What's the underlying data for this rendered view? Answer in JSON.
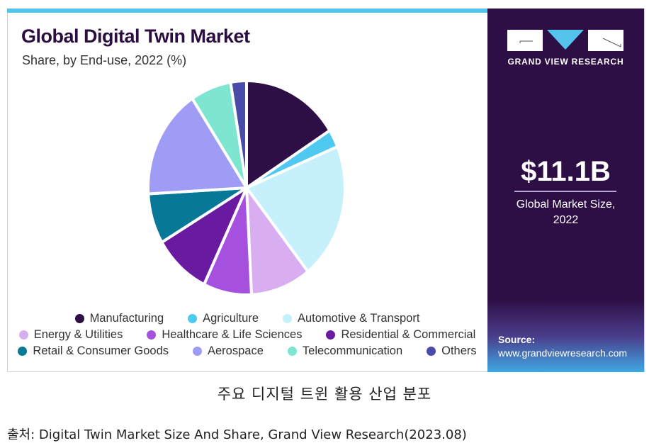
{
  "chart_data": {
    "type": "pie",
    "title": "Global Digital Twin Market",
    "subtitle": "Share, by End-use, 2022 (%)",
    "legend_position": "bottom",
    "categories": [
      "Manufacturing",
      "Agriculture",
      "Automotive & Transport",
      "Energy & Utilities",
      "Healthcare & Life Sciences",
      "Residential & Commercial",
      "Retail & Consumer Goods",
      "Aerospace",
      "Telecommunication",
      "Others"
    ],
    "values": [
      16.0,
      2.7,
      20.6,
      9.9,
      7.9,
      9.4,
      7.6,
      16.6,
      6.7,
      2.6
    ],
    "colors": [
      "#2e0f45",
      "#4fc9f0",
      "#c6f0fb",
      "#d9aef0",
      "#a650e0",
      "#6a1aa0",
      "#087898",
      "#9e9cf5",
      "#7ee6d0",
      "#4a4aa8"
    ]
  },
  "panel": {
    "brand": "GRAND VIEW RESEARCH",
    "value": "$11.1B",
    "value_label_1": "Global Market Size,",
    "value_label_2": "2022",
    "source_label": "Source:",
    "source_url": "www.grandviewresearch.com"
  },
  "caption": "주요 디지털 트윈 활용 산업 분포",
  "source_line": "출처: Digital Twin Market Size And Share, Grand View Research(2023.08)"
}
